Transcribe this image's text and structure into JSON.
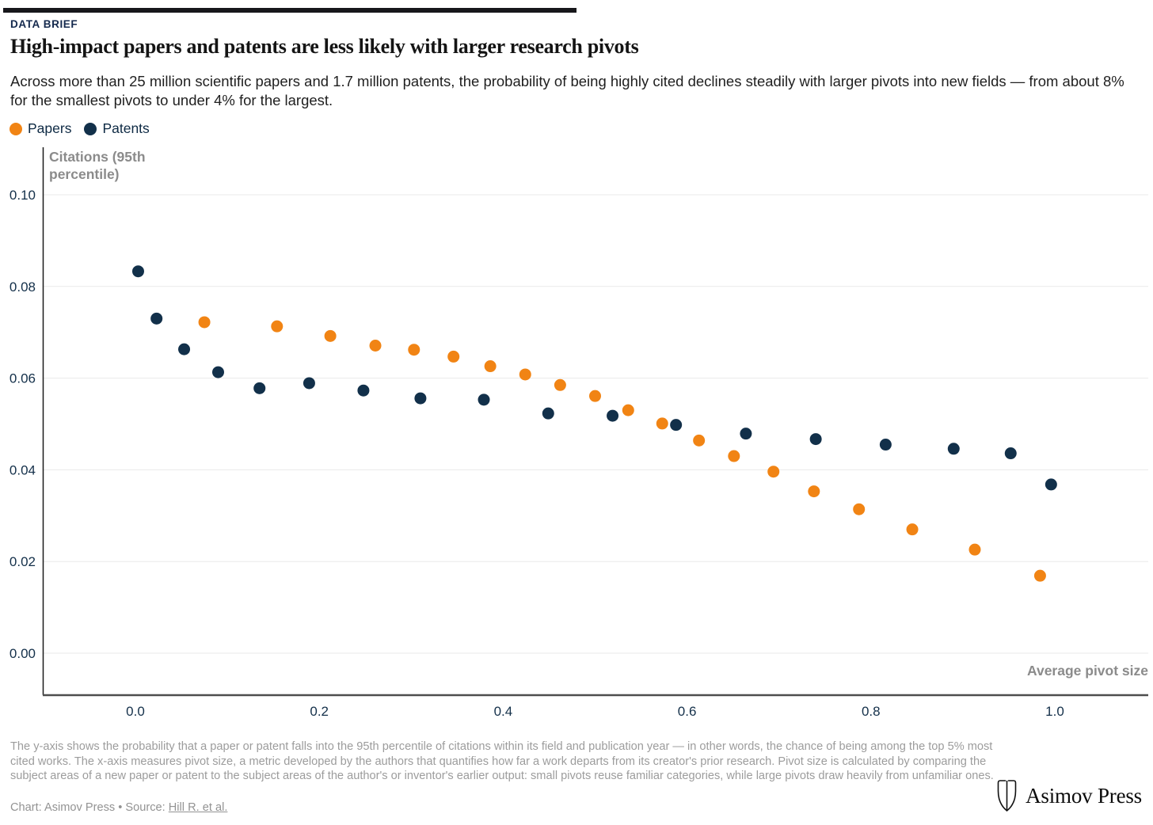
{
  "header": {
    "kicker": "DATA BRIEF",
    "title": "High-impact papers and patents are less likely with larger research pivots",
    "subtitle": "Across more than 25 million scientific papers and 1.7 million patents, the probability of being highly cited declines steadily with larger pivots into new fields — from about 8% for the smallest pivots to under 4% for the largest."
  },
  "legend": {
    "items": [
      {
        "label": "Papers",
        "color": "#f18414"
      },
      {
        "label": "Patents",
        "color": "#12304a"
      }
    ]
  },
  "chart_data": {
    "type": "scatter",
    "title": "High-impact papers and patents are less likely with larger research pivots",
    "xlabel": "Average pivot size",
    "ylabel": "Citations (95th percentile)",
    "xlim": [
      -0.1,
      1.1
    ],
    "ylim": [
      -0.0092,
      0.1105
    ],
    "grid": "horizontal",
    "legend_position": "top-left",
    "x_ticks": [
      0.0,
      0.2,
      0.4,
      0.6,
      0.8,
      1.0
    ],
    "x_tick_labels": [
      "0.0",
      "0.2",
      "0.4",
      "0.6",
      "0.8",
      "1.0"
    ],
    "y_ticks": [
      0.0,
      0.02,
      0.04,
      0.06,
      0.08,
      0.1
    ],
    "y_tick_labels": [
      "0.00",
      "0.02",
      "0.04",
      "0.06",
      "0.08",
      "0.10"
    ],
    "series": [
      {
        "name": "Papers",
        "color": "#f18414",
        "points": [
          [
            0.075,
            0.0722
          ],
          [
            0.154,
            0.0713
          ],
          [
            0.212,
            0.0692
          ],
          [
            0.261,
            0.0671
          ],
          [
            0.303,
            0.0662
          ],
          [
            0.346,
            0.0647
          ],
          [
            0.386,
            0.0626
          ],
          [
            0.424,
            0.0608
          ],
          [
            0.462,
            0.0585
          ],
          [
            0.5,
            0.0561
          ],
          [
            0.536,
            0.053
          ],
          [
            0.573,
            0.0501
          ],
          [
            0.613,
            0.0464
          ],
          [
            0.651,
            0.043
          ],
          [
            0.694,
            0.0396
          ],
          [
            0.738,
            0.0353
          ],
          [
            0.787,
            0.0314
          ],
          [
            0.845,
            0.027
          ],
          [
            0.913,
            0.0226
          ],
          [
            0.984,
            0.0169
          ]
        ]
      },
      {
        "name": "Patents",
        "color": "#12304a",
        "points": [
          [
            0.003,
            0.0833
          ],
          [
            0.023,
            0.073
          ],
          [
            0.053,
            0.0663
          ],
          [
            0.09,
            0.0613
          ],
          [
            0.135,
            0.0578
          ],
          [
            0.189,
            0.0589
          ],
          [
            0.248,
            0.0573
          ],
          [
            0.31,
            0.0556
          ],
          [
            0.379,
            0.0553
          ],
          [
            0.449,
            0.0523
          ],
          [
            0.519,
            0.0518
          ],
          [
            0.588,
            0.0498
          ],
          [
            0.664,
            0.0479
          ],
          [
            0.74,
            0.0467
          ],
          [
            0.816,
            0.0455
          ],
          [
            0.89,
            0.0446
          ],
          [
            0.952,
            0.0436
          ],
          [
            0.996,
            0.0368
          ]
        ]
      }
    ]
  },
  "axis_titles": {
    "y": "Citations (95th percentile)",
    "x": "Average pivot size"
  },
  "footer": {
    "note": "The y-axis shows the probability that a paper or patent falls into the 95th percentile of citations within its field and publication year — in other words, the chance of being among the top 5% most cited works. The x-axis measures pivot size, a metric developed by the authors that quantifies how far a work departs from its creator's prior research. Pivot size is calculated by comparing the subject areas of a new paper or patent to the subject areas of the author's or inventor's earlier output: small pivots reuse familiar categories, while large pivots draw heavily from unfamiliar ones.",
    "credit_prefix": "Chart: Asimov Press • Source: ",
    "source_link": "Hill R. et al.",
    "logo_text": "Asimov Press"
  },
  "colors": {
    "papers": "#f18414",
    "patents": "#12304a",
    "tick_label": "#14304a",
    "gridline": "#eaeaea",
    "y_axis_line": "#1a1a1a",
    "x_axis_line": "#4d4d4d",
    "axis_title": "#8b8b8b",
    "top_bar": "#17171b"
  }
}
